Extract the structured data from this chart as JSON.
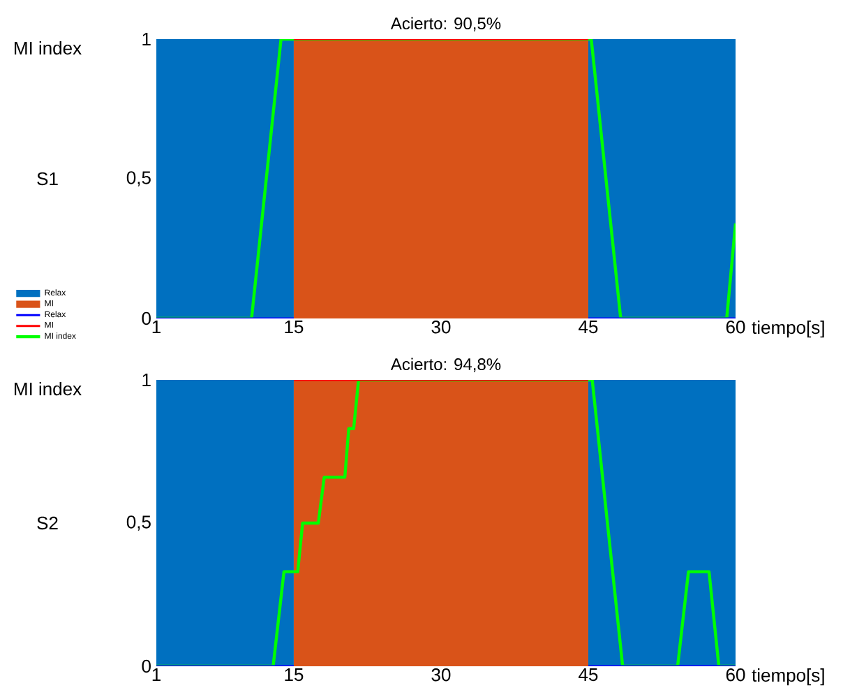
{
  "chart_data": [
    {
      "type": "line",
      "title": "Acierto: 90,5%",
      "xlabel": "tiempo[s]",
      "ylabel": "S1",
      "annotations": [
        "MI index"
      ],
      "xlim": [
        1,
        60
      ],
      "xticks": [
        1,
        15,
        30,
        45,
        60
      ],
      "ylim": [
        0,
        1
      ],
      "yticks": [
        0,
        {
          "value": 0.5,
          "label": "0,5"
        },
        1
      ],
      "legend": "left",
      "series": [
        {
          "name": "Relax",
          "type": "area",
          "color": "#0070c0",
          "x": [
            1,
            15,
            null,
            45,
            60
          ],
          "values": [
            1,
            1,
            null,
            1,
            1
          ]
        },
        {
          "name": "MI",
          "type": "area",
          "color": "#d95319",
          "x": [
            15,
            45
          ],
          "values": [
            1,
            1
          ]
        },
        {
          "name": "Relax",
          "color": "#0000ff",
          "x": [
            1,
            15,
            null,
            45,
            60
          ],
          "values": [
            0,
            0,
            null,
            0,
            0
          ]
        },
        {
          "name": "MI",
          "color": "#ff0000",
          "x": [
            15,
            45
          ],
          "values": [
            1,
            1
          ]
        },
        {
          "name": "MI index",
          "color": "#00ff00",
          "x": [
            1,
            10.7,
            13.7,
            45.3,
            48.3,
            59.1,
            60
          ],
          "values": [
            0,
            0,
            1,
            1,
            0,
            0,
            0.34
          ]
        }
      ]
    },
    {
      "type": "line",
      "title": "Acierto: 94,8%",
      "xlabel": "tiempo[s]",
      "ylabel": "S2",
      "annotations": [
        "MI index"
      ],
      "xlim": [
        1,
        60
      ],
      "xticks": [
        1,
        15,
        30,
        45,
        60
      ],
      "ylim": [
        0,
        1
      ],
      "yticks": [
        0,
        {
          "value": 0.5,
          "label": "0,5"
        },
        1
      ],
      "series": [
        {
          "type": "area",
          "color": "#0070c0",
          "x": [
            1,
            15,
            null,
            45,
            60
          ],
          "values": [
            1,
            1,
            null,
            1,
            1
          ]
        },
        {
          "type": "area",
          "color": "#d95319",
          "x": [
            15,
            45
          ],
          "values": [
            1,
            1
          ]
        },
        {
          "color": "#0000ff",
          "x": [
            1,
            15,
            null,
            45,
            60
          ],
          "values": [
            0,
            0,
            null,
            0,
            0
          ]
        },
        {
          "color": "#ff0000",
          "x": [
            15,
            45
          ],
          "values": [
            1,
            1
          ]
        },
        {
          "color": "#00ff00",
          "x": [
            1,
            12.9,
            14.0,
            15.4,
            15.9,
            17.5,
            18.1,
            20.2,
            20.6,
            21.1,
            21.6,
            45.4,
            48.5,
            54.1,
            55.2,
            57.3,
            58.3,
            60
          ],
          "values": [
            0,
            0,
            0.33,
            0.33,
            0.5,
            0.5,
            0.66,
            0.66,
            0.83,
            0.83,
            1,
            1,
            0,
            0,
            0.33,
            0.33,
            0,
            0
          ]
        }
      ]
    }
  ]
}
